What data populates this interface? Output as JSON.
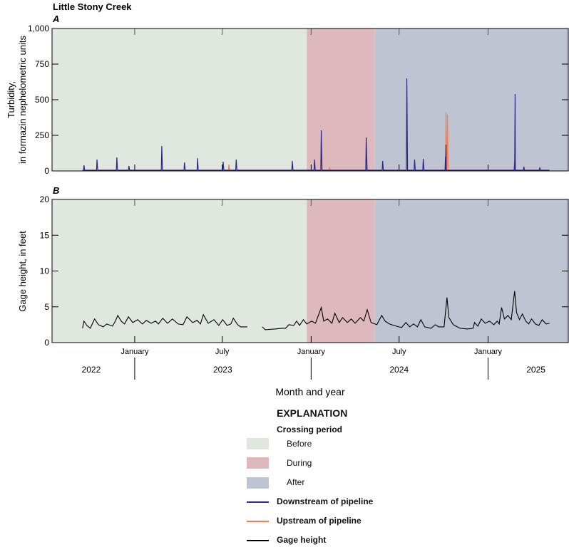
{
  "chart_data": [
    {
      "type": "line",
      "panel": "A",
      "title": "Little Stony Creek",
      "ylabel": "Turbidity, in formazin nephelometric units",
      "ylim": [
        0,
        1000
      ],
      "yticks": [
        0,
        250,
        500,
        750,
        1000
      ],
      "ytick_labels": [
        "0",
        "250",
        "500",
        "750",
        "1,000"
      ],
      "x_units": "days since 2023-01-01",
      "xlim": [
        -171,
        897
      ],
      "periods": [
        {
          "name": "Before",
          "start": -171,
          "end": 356,
          "color": "#dfe7df"
        },
        {
          "name": "During",
          "start": 356,
          "end": 496,
          "color": "#ddb9bd"
        },
        {
          "name": "After",
          "start": 496,
          "end": 897,
          "color": "#bfc4d3"
        }
      ],
      "series": [
        {
          "name": "Downstream of pipeline",
          "color": "#2b2a8a",
          "range": [
            -108,
            858
          ],
          "baseline": 5,
          "spikes": [
            [
              -105,
              40
            ],
            [
              -78,
              80
            ],
            [
              -37,
              95
            ],
            [
              -12,
              35
            ],
            [
              56,
              175
            ],
            [
              103,
              60
            ],
            [
              130,
              90
            ],
            [
              183,
              65
            ],
            [
              210,
              80
            ],
            [
              326,
              70
            ],
            [
              372,
              80
            ],
            [
              386,
              285
            ],
            [
              479,
              235
            ],
            [
              513,
              70
            ],
            [
              563,
              650
            ],
            [
              579,
              80
            ],
            [
              597,
              85
            ],
            [
              643,
              100
            ],
            [
              644,
              185
            ],
            [
              786,
              65
            ],
            [
              787,
              540
            ],
            [
              805,
              30
            ],
            [
              838,
              25
            ]
          ]
        },
        {
          "name": "Upstream of pipeline",
          "color": "#f58050",
          "range": [
            -108,
            858
          ],
          "baseline": 6,
          "spikes": [
            [
              195,
              45
            ],
            [
              386,
              120
            ],
            [
              403,
              25
            ],
            [
              480,
              110
            ],
            [
              644,
              410
            ],
            [
              647,
              395
            ]
          ]
        }
      ]
    },
    {
      "type": "line",
      "panel": "B",
      "ylabel": "Gage height, in feet",
      "ylim": [
        0,
        20
      ],
      "yticks": [
        0,
        5,
        10,
        15,
        20
      ],
      "ytick_labels": [
        "0",
        "5",
        "10",
        "15",
        "20"
      ],
      "xlabel": "Month and year",
      "xlim": [
        -171,
        897
      ],
      "series": [
        {
          "name": "Gage height",
          "color": "#000000",
          "segments": [
            [
              [
                -108,
                2.0
              ],
              [
                -105,
                3.0
              ],
              [
                -99,
                2.4
              ],
              [
                -92,
                2.0
              ],
              [
                -83,
                3.3
              ],
              [
                -75,
                2.5
              ],
              [
                -65,
                2.2
              ],
              [
                -58,
                2.6
              ],
              [
                -46,
                2.3
              ],
              [
                -40,
                3.0
              ],
              [
                -35,
                3.8
              ],
              [
                -28,
                3.0
              ],
              [
                -21,
                2.6
              ],
              [
                -13,
                3.6
              ],
              [
                -4,
                2.8
              ],
              [
                6,
                3.2
              ],
              [
                16,
                2.6
              ],
              [
                24,
                3.1
              ],
              [
                34,
                2.7
              ],
              [
                43,
                3.0
              ],
              [
                49,
                2.6
              ],
              [
                58,
                3.4
              ],
              [
                68,
                2.7
              ],
              [
                78,
                3.3
              ],
              [
                90,
                2.6
              ],
              [
                100,
                2.5
              ],
              [
                108,
                3.6
              ],
              [
                120,
                2.8
              ],
              [
                129,
                3.1
              ],
              [
                136,
                2.6
              ],
              [
                142,
                3.9
              ],
              [
                152,
                2.7
              ],
              [
                164,
                3.2
              ],
              [
                174,
                2.4
              ],
              [
                182,
                3.2
              ],
              [
                191,
                2.4
              ],
              [
                199,
                2.6
              ],
              [
                204,
                3.4
              ],
              [
                213,
                2.5
              ],
              [
                219,
                2.2
              ],
              [
                233,
                2.2
              ]
            ],
            [
              [
                264,
                2.2
              ],
              [
                270,
                1.8
              ],
              [
                290,
                1.9
              ],
              [
                304,
                2.0
              ],
              [
                312,
                2.0
              ],
              [
                319,
                2.5
              ],
              [
                329,
                2.4
              ],
              [
                335,
                3.0
              ],
              [
                341,
                2.4
              ],
              [
                349,
                3.2
              ],
              [
                356,
                2.6
              ],
              [
                366,
                3.0
              ],
              [
                374,
                2.7
              ],
              [
                386,
                4.9
              ],
              [
                391,
                3.0
              ],
              [
                399,
                3.3
              ],
              [
                408,
                2.7
              ],
              [
                414,
                4.1
              ],
              [
                423,
                2.8
              ],
              [
                430,
                3.5
              ],
              [
                440,
                2.8
              ],
              [
                448,
                3.3
              ],
              [
                456,
                2.7
              ],
              [
                467,
                3.5
              ],
              [
                474,
                3.0
              ],
              [
                481,
                4.6
              ],
              [
                489,
                2.8
              ],
              [
                501,
                2.5
              ],
              [
                511,
                3.8
              ],
              [
                518,
                3.0
              ],
              [
                527,
                2.6
              ],
              [
                541,
                2.3
              ],
              [
                552,
                2.1
              ],
              [
                561,
                2.8
              ],
              [
                569,
                2.2
              ],
              [
                577,
                2.6
              ],
              [
                585,
                2.2
              ],
              [
                592,
                3.2
              ],
              [
                600,
                2.2
              ],
              [
                613,
                2.0
              ],
              [
                622,
                2.5
              ],
              [
                629,
                2.2
              ],
              [
                640,
                2.2
              ],
              [
                646,
                6.3
              ],
              [
                650,
                3.5
              ],
              [
                659,
                2.5
              ],
              [
                673,
                2.0
              ],
              [
                688,
                1.9
              ],
              [
                700,
                2.0
              ],
              [
                703,
                2.8
              ],
              [
                710,
                2.3
              ],
              [
                717,
                3.3
              ],
              [
                725,
                2.7
              ],
              [
                734,
                3.0
              ],
              [
                743,
                2.5
              ],
              [
                750,
                3.0
              ],
              [
                754,
                2.6
              ],
              [
                759,
                4.9
              ],
              [
                765,
                3.3
              ],
              [
                772,
                3.8
              ],
              [
                779,
                3.2
              ],
              [
                786,
                7.2
              ],
              [
                790,
                4.2
              ],
              [
                796,
                3.2
              ],
              [
                802,
                4.0
              ],
              [
                809,
                3.0
              ],
              [
                815,
                2.6
              ],
              [
                821,
                3.3
              ],
              [
                829,
                2.6
              ],
              [
                836,
                2.4
              ],
              [
                843,
                3.2
              ],
              [
                851,
                2.6
              ],
              [
                858,
                2.7
              ]
            ]
          ]
        }
      ]
    }
  ],
  "x_axis": {
    "month_ticks": [
      {
        "day": 0,
        "label": "January"
      },
      {
        "day": 181,
        "label": "July"
      },
      {
        "day": 365,
        "label": "January"
      },
      {
        "day": 547,
        "label": "July"
      },
      {
        "day": 731,
        "label": "January"
      }
    ],
    "year_labels": [
      {
        "day": -90,
        "label": "2022"
      },
      {
        "day": 182,
        "label": "2023"
      },
      {
        "day": 547,
        "label": "2024"
      },
      {
        "day": 830,
        "label": "2025"
      }
    ],
    "year_dividers": [
      0,
      365,
      731
    ]
  },
  "legend": {
    "title": "EXPLANATION",
    "subtitle": "Crossing period",
    "items": [
      "Before",
      "During",
      "After"
    ],
    "lines": [
      "Downstream of pipeline",
      "Upstream of pipeline",
      "Gage height"
    ]
  }
}
